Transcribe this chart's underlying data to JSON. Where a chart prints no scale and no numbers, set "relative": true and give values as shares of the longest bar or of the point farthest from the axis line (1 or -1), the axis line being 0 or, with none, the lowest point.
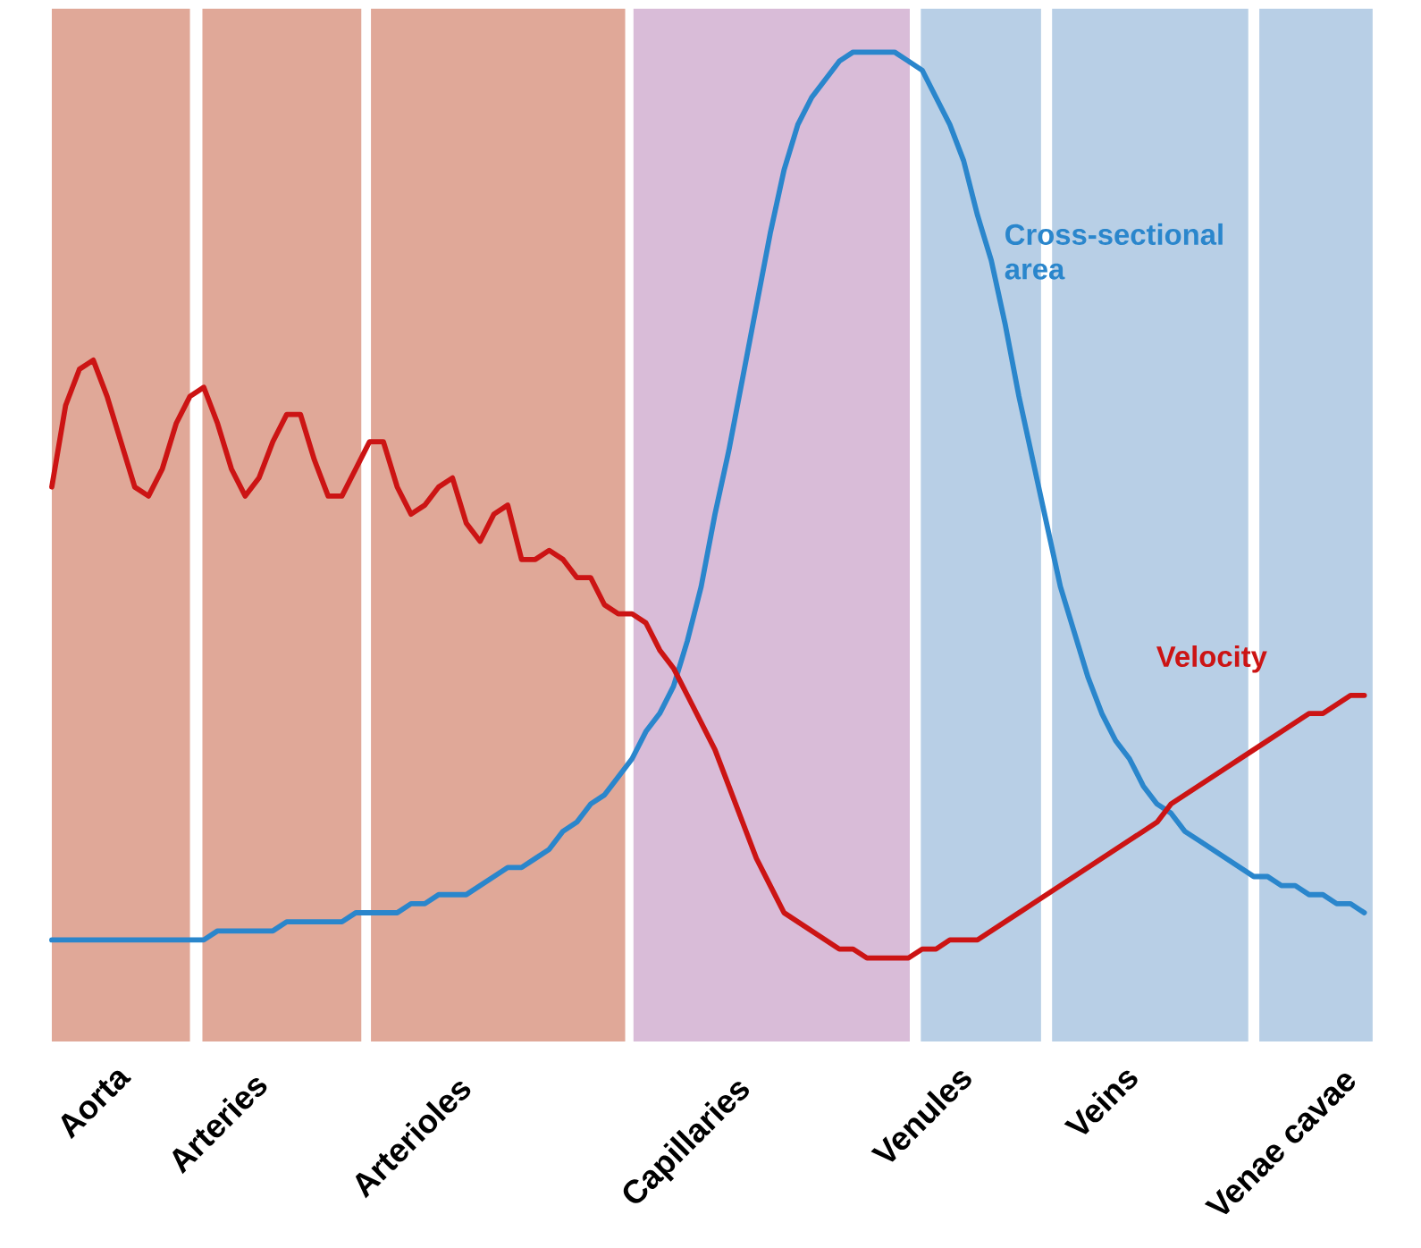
{
  "chart_data": {
    "type": "line",
    "relative": true,
    "tick_labels": "x",
    "categories": [
      null,
      null,
      null,
      "Aorta",
      null,
      null,
      null,
      null,
      null,
      null,
      null,
      null,
      "Arteries",
      null,
      null,
      null,
      null,
      null,
      null,
      null,
      null,
      null,
      null,
      null,
      null,
      null,
      "Arterioles",
      null,
      null,
      null,
      null,
      null,
      null,
      null,
      null,
      null,
      null,
      null,
      null,
      null,
      null,
      null,
      null,
      null,
      null,
      null,
      "Capillaries",
      null,
      null,
      null,
      null,
      null,
      null,
      null,
      null,
      null,
      null,
      null,
      null,
      null,
      null,
      null,
      null,
      "Venules",
      null,
      null,
      null,
      null,
      null,
      null,
      null,
      null,
      null,
      null,
      null,
      null,
      "Veins",
      null,
      null,
      null,
      null,
      null,
      null,
      null,
      null,
      null,
      null,
      null,
      null,
      "Venae cavae",
      null,
      null,
      null,
      null,
      null,
      null
    ],
    "series": [
      {
        "name": "Cross-sectional area",
        "color": "#2a86cc",
        "values": [
          0.02,
          0.02,
          0.02,
          0.02,
          0.02,
          0.02,
          0.02,
          0.02,
          0.02,
          0.02,
          0.02,
          0.02,
          0.03,
          0.03,
          0.03,
          0.03,
          0.03,
          0.04,
          0.04,
          0.04,
          0.04,
          0.04,
          0.05,
          0.05,
          0.05,
          0.05,
          0.06,
          0.06,
          0.07,
          0.07,
          0.07,
          0.08,
          0.09,
          0.1,
          0.1,
          0.11,
          0.12,
          0.14,
          0.15,
          0.17,
          0.18,
          0.2,
          0.22,
          0.25,
          0.27,
          0.3,
          0.35,
          0.41,
          0.49,
          0.56,
          0.64,
          0.72,
          0.8,
          0.87,
          0.92,
          0.95,
          0.97,
          0.99,
          1.0,
          1.0,
          1.0,
          1.0,
          0.99,
          0.98,
          0.95,
          0.92,
          0.88,
          0.82,
          0.77,
          0.7,
          0.62,
          0.55,
          0.48,
          0.41,
          0.36,
          0.31,
          0.27,
          0.24,
          0.22,
          0.19,
          0.17,
          0.16,
          0.14,
          0.13,
          0.12,
          0.11,
          0.1,
          0.09,
          0.09,
          0.08,
          0.08,
          0.07,
          0.07,
          0.06,
          0.06,
          0.05
        ]
      },
      {
        "name": "Velocity",
        "color": "#cc1414",
        "values": [
          0.52,
          0.61,
          0.65,
          0.66,
          0.62,
          0.57,
          0.52,
          0.51,
          0.54,
          0.59,
          0.62,
          0.63,
          0.59,
          0.54,
          0.51,
          0.53,
          0.57,
          0.6,
          0.6,
          0.55,
          0.51,
          0.51,
          0.54,
          0.57,
          0.57,
          0.52,
          0.49,
          0.5,
          0.52,
          0.53,
          0.48,
          0.46,
          0.49,
          0.5,
          0.44,
          0.44,
          0.45,
          0.44,
          0.42,
          0.42,
          0.39,
          0.38,
          0.38,
          0.37,
          0.34,
          0.32,
          0.29,
          0.26,
          0.23,
          0.19,
          0.15,
          0.11,
          0.08,
          0.05,
          0.04,
          0.03,
          0.02,
          0.01,
          0.01,
          0.0,
          0.0,
          0.0,
          0.0,
          0.01,
          0.01,
          0.02,
          0.02,
          0.02,
          0.03,
          0.04,
          0.05,
          0.06,
          0.07,
          0.08,
          0.09,
          0.1,
          0.11,
          0.12,
          0.13,
          0.14,
          0.15,
          0.17,
          0.18,
          0.19,
          0.2,
          0.21,
          0.22,
          0.23,
          0.24,
          0.25,
          0.26,
          0.27,
          0.27,
          0.28,
          0.29,
          0.29
        ]
      }
    ]
  }
}
